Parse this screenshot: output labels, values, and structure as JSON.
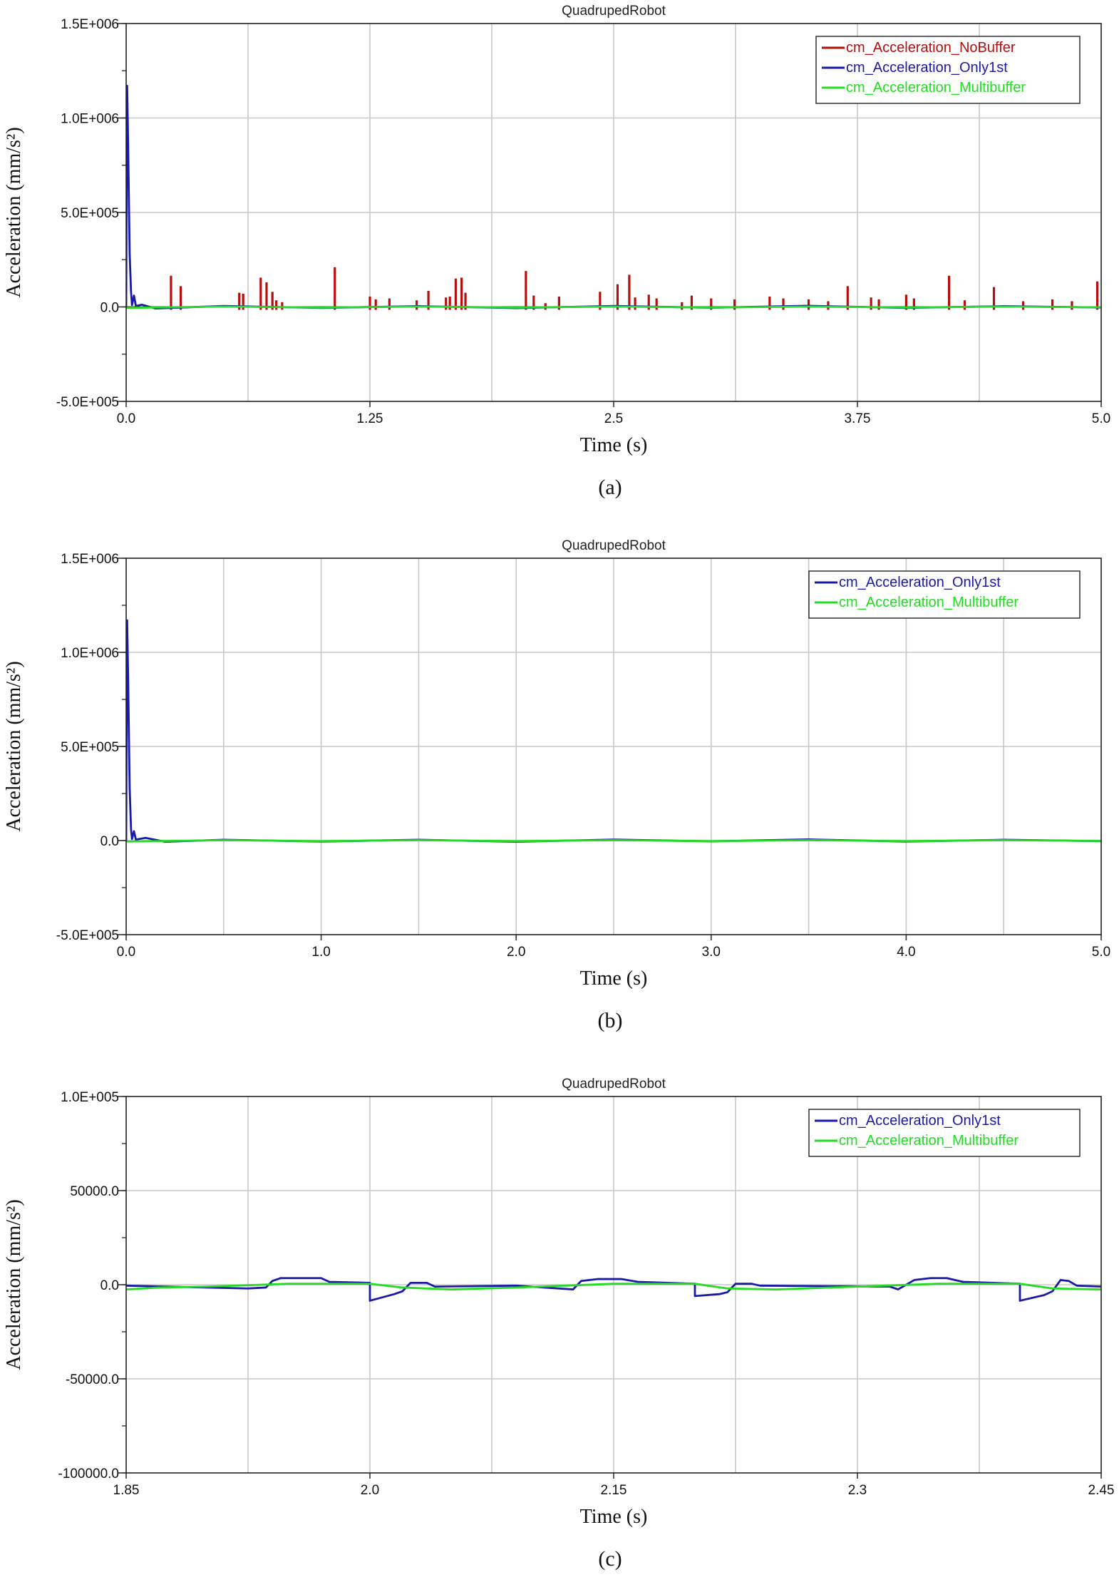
{
  "colors": {
    "nobuffer": "#b40e0e",
    "only1st": "#1a1aa8",
    "multibuffer": "#22dd22",
    "grid": "#c8c8c8"
  },
  "chart_data": [
    {
      "type": "line",
      "title": "QuadrupedRobot",
      "xlabel": "Time (s)",
      "ylabel": "Acceleration (mm/s²)",
      "xlim": [
        0.0,
        5.0
      ],
      "ylim": [
        -500000,
        1500000
      ],
      "x_ticks": [
        0.0,
        1.25,
        2.5,
        3.75,
        5.0
      ],
      "x_tick_labels": [
        "0.0",
        "1.25",
        "2.5",
        "3.75",
        "5.0"
      ],
      "y_ticks": [
        -500000,
        0,
        500000,
        1000000,
        1500000
      ],
      "y_tick_labels": [
        "-5.0E+005",
        "0.0",
        "5.0E+005",
        "1.0E+006",
        "1.5E+006"
      ],
      "x_grid_step": 0.625,
      "y_minor_step": 250000,
      "grid": true,
      "legend_position": "top-right",
      "sublabel": "(a)",
      "series": [
        {
          "name": "cm_Acceleration_NoBuffer",
          "color_key": "nobuffer",
          "spikes": [
            [
              0.23,
              165000
            ],
            [
              0.28,
              110000
            ],
            [
              0.58,
              75000
            ],
            [
              0.6,
              70000
            ],
            [
              0.69,
              155000
            ],
            [
              0.72,
              130000
            ],
            [
              0.75,
              80000
            ],
            [
              0.77,
              35000
            ],
            [
              0.8,
              25000
            ],
            [
              1.07,
              210000
            ],
            [
              1.25,
              55000
            ],
            [
              1.28,
              40000
            ],
            [
              1.35,
              45000
            ],
            [
              1.49,
              35000
            ],
            [
              1.55,
              85000
            ],
            [
              1.64,
              50000
            ],
            [
              1.66,
              55000
            ],
            [
              1.69,
              150000
            ],
            [
              1.72,
              155000
            ],
            [
              1.74,
              75000
            ],
            [
              2.05,
              190000
            ],
            [
              2.09,
              60000
            ],
            [
              2.15,
              20000
            ],
            [
              2.22,
              55000
            ],
            [
              2.43,
              80000
            ],
            [
              2.52,
              120000
            ],
            [
              2.58,
              170000
            ],
            [
              2.61,
              50000
            ],
            [
              2.68,
              65000
            ],
            [
              2.72,
              45000
            ],
            [
              2.85,
              25000
            ],
            [
              2.9,
              60000
            ],
            [
              3.0,
              45000
            ],
            [
              3.12,
              40000
            ],
            [
              3.3,
              55000
            ],
            [
              3.37,
              45000
            ],
            [
              3.5,
              40000
            ],
            [
              3.6,
              30000
            ],
            [
              3.7,
              110000
            ],
            [
              3.82,
              50000
            ],
            [
              3.86,
              40000
            ],
            [
              4.0,
              65000
            ],
            [
              4.04,
              45000
            ],
            [
              4.22,
              165000
            ],
            [
              4.3,
              35000
            ],
            [
              4.45,
              105000
            ],
            [
              4.6,
              30000
            ],
            [
              4.75,
              40000
            ],
            [
              4.85,
              30000
            ],
            [
              4.98,
              135000
            ]
          ]
        },
        {
          "name": "cm_Acceleration_Only1st",
          "color_key": "only1st",
          "points": [
            [
              0.0,
              0
            ],
            [
              0.005,
              1170000
            ],
            [
              0.01,
              870000
            ],
            [
              0.018,
              280000
            ],
            [
              0.025,
              80000
            ],
            [
              0.03,
              10000
            ],
            [
              0.04,
              60000
            ],
            [
              0.05,
              5000
            ],
            [
              0.08,
              12000
            ],
            [
              0.15,
              -8000
            ],
            [
              0.5,
              5000
            ],
            [
              1.0,
              -5000
            ],
            [
              1.5,
              4000
            ],
            [
              2.0,
              -6000
            ],
            [
              2.5,
              5000
            ],
            [
              3.0,
              -4000
            ],
            [
              3.5,
              6000
            ],
            [
              4.0,
              -5000
            ],
            [
              4.5,
              4000
            ],
            [
              5.0,
              -3000
            ]
          ]
        },
        {
          "name": "cm_Acceleration_Multibuffer",
          "color_key": "multibuffer",
          "points": [
            [
              0.0,
              -5000
            ],
            [
              0.5,
              2000
            ],
            [
              1.0,
              -3000
            ],
            [
              1.5,
              2000
            ],
            [
              2.0,
              -3000
            ],
            [
              2.5,
              2000
            ],
            [
              3.0,
              -3000
            ],
            [
              3.5,
              2000
            ],
            [
              4.0,
              -3000
            ],
            [
              4.5,
              2000
            ],
            [
              5.0,
              -2000
            ]
          ]
        }
      ]
    },
    {
      "type": "line",
      "title": "QuadrupedRobot",
      "xlabel": "Time (s)",
      "ylabel": "Acceleration (mm/s²)",
      "xlim": [
        0.0,
        5.0
      ],
      "ylim": [
        -500000,
        1500000
      ],
      "x_ticks": [
        0.0,
        1.0,
        2.0,
        3.0,
        4.0,
        5.0
      ],
      "x_tick_labels": [
        "0.0",
        "1.0",
        "2.0",
        "3.0",
        "4.0",
        "5.0"
      ],
      "y_ticks": [
        -500000,
        0,
        500000,
        1000000,
        1500000
      ],
      "y_tick_labels": [
        "-5.0E+005",
        "0.0",
        "5.0E+005",
        "1.0E+006",
        "1.5E+006"
      ],
      "x_grid_step": 0.5,
      "y_minor_step": 250000,
      "grid": true,
      "legend_position": "top-right",
      "sublabel": "(b)",
      "series": [
        {
          "name": "cm_Acceleration_Only1st",
          "color_key": "only1st",
          "points": [
            [
              0.0,
              0
            ],
            [
              0.005,
              1170000
            ],
            [
              0.01,
              870000
            ],
            [
              0.018,
              280000
            ],
            [
              0.025,
              60000
            ],
            [
              0.03,
              8000
            ],
            [
              0.04,
              50000
            ],
            [
              0.05,
              5000
            ],
            [
              0.1,
              14000
            ],
            [
              0.2,
              -6000
            ],
            [
              0.5,
              4000
            ],
            [
              1.0,
              -5000
            ],
            [
              1.5,
              4000
            ],
            [
              2.0,
              -6000
            ],
            [
              2.5,
              5000
            ],
            [
              3.0,
              -4000
            ],
            [
              3.5,
              6000
            ],
            [
              4.0,
              -5000
            ],
            [
              4.5,
              4000
            ],
            [
              5.0,
              -3000
            ]
          ]
        },
        {
          "name": "cm_Acceleration_Multibuffer",
          "color_key": "multibuffer",
          "points": [
            [
              0.0,
              -5000
            ],
            [
              0.5,
              2000
            ],
            [
              1.0,
              -3000
            ],
            [
              1.5,
              2000
            ],
            [
              2.0,
              -3000
            ],
            [
              2.5,
              2000
            ],
            [
              3.0,
              -3000
            ],
            [
              3.5,
              2000
            ],
            [
              4.0,
              -3000
            ],
            [
              4.5,
              2000
            ],
            [
              5.0,
              -2000
            ]
          ]
        }
      ]
    },
    {
      "type": "line",
      "title": "QuadrupedRobot",
      "xlabel": "Time (s)",
      "ylabel": "Acceleration (mm/s²)",
      "xlim": [
        1.85,
        2.45
      ],
      "ylim": [
        -100000,
        100000
      ],
      "x_ticks": [
        1.85,
        2.0,
        2.15,
        2.3,
        2.45
      ],
      "x_tick_labels": [
        "1.85",
        "2.0",
        "2.15",
        "2.3",
        "2.45"
      ],
      "y_ticks": [
        -100000,
        -50000,
        0,
        50000,
        100000
      ],
      "y_tick_labels": [
        "-100000.0",
        "-50000.0",
        "0.0",
        "50000.0",
        "1.0E+005"
      ],
      "x_grid_step": 0.075,
      "y_minor_step": 25000,
      "grid": true,
      "legend_position": "top-right",
      "sublabel": "(c)",
      "series": [
        {
          "name": "cm_Acceleration_Only1st",
          "color_key": "only1st",
          "points": [
            [
              1.85,
              -500
            ],
            [
              1.925,
              -2000
            ],
            [
              1.936,
              -1500
            ],
            [
              1.94,
              2000
            ],
            [
              1.945,
              3500
            ],
            [
              1.97,
              3500
            ],
            [
              1.975,
              1500
            ],
            [
              2.0,
              1000
            ],
            [
              2.0,
              -8500
            ],
            [
              2.015,
              -5000
            ],
            [
              2.02,
              -3500
            ],
            [
              2.025,
              1000
            ],
            [
              2.035,
              1000
            ],
            [
              2.04,
              -1000
            ],
            [
              2.09,
              -500
            ],
            [
              2.125,
              -2500
            ],
            [
              2.13,
              2000
            ],
            [
              2.14,
              3000
            ],
            [
              2.155,
              3000
            ],
            [
              2.165,
              1500
            ],
            [
              2.2,
              500
            ],
            [
              2.2,
              -6000
            ],
            [
              2.215,
              -5000
            ],
            [
              2.22,
              -4000
            ],
            [
              2.225,
              500
            ],
            [
              2.235,
              500
            ],
            [
              2.24,
              -500
            ],
            [
              2.32,
              -1000
            ],
            [
              2.325,
              -2500
            ],
            [
              2.335,
              2500
            ],
            [
              2.345,
              3500
            ],
            [
              2.355,
              3500
            ],
            [
              2.365,
              1500
            ],
            [
              2.4,
              500
            ],
            [
              2.4,
              -8500
            ],
            [
              2.415,
              -5500
            ],
            [
              2.42,
              -3500
            ],
            [
              2.425,
              2500
            ],
            [
              2.43,
              2000
            ],
            [
              2.435,
              -500
            ],
            [
              2.45,
              -1000
            ]
          ]
        },
        {
          "name": "cm_Acceleration_Multibuffer",
          "color_key": "multibuffer",
          "points": [
            [
              1.85,
              -2500
            ],
            [
              1.87,
              -1500
            ],
            [
              1.9,
              -1000
            ],
            [
              1.95,
              500
            ],
            [
              2.0,
              500
            ],
            [
              2.02,
              -1500
            ],
            [
              2.05,
              -2500
            ],
            [
              2.09,
              -1500
            ],
            [
              2.12,
              -500
            ],
            [
              2.15,
              500
            ],
            [
              2.2,
              500
            ],
            [
              2.22,
              -2000
            ],
            [
              2.25,
              -2500
            ],
            [
              2.3,
              -1000
            ],
            [
              2.35,
              500
            ],
            [
              2.4,
              500
            ],
            [
              2.42,
              -2000
            ],
            [
              2.45,
              -2500
            ]
          ]
        }
      ]
    }
  ]
}
